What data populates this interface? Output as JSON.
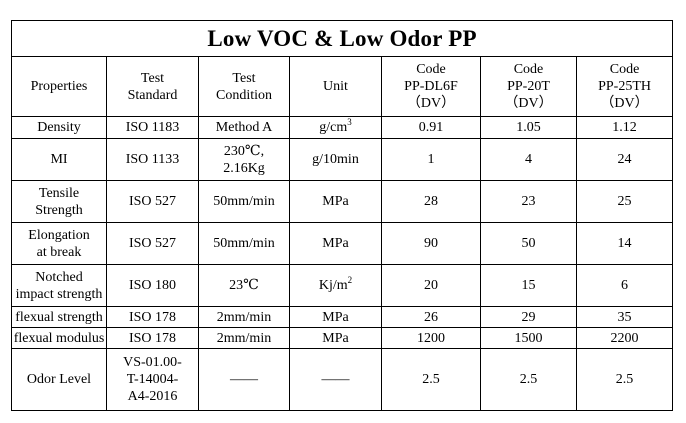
{
  "title": "Low VOC & Low Odor PP",
  "header": {
    "properties": "Properties",
    "test_standard": [
      "Test",
      "Standard"
    ],
    "test_condition": [
      "Test",
      "Condition"
    ],
    "unit": "Unit",
    "codes": [
      {
        "label": "Code",
        "name": "PP-DL6F",
        "suffix": "（DV）"
      },
      {
        "label": "Code",
        "name": "PP-20T",
        "suffix": "（DV）"
      },
      {
        "label": "Code",
        "name": "PP-25TH",
        "suffix": "（DV）"
      }
    ]
  },
  "rows": [
    {
      "property": [
        "Density"
      ],
      "standard": [
        "ISO 1183"
      ],
      "condition": [
        "Method A"
      ],
      "unit": "g/cm",
      "unit_sup": "3",
      "values": [
        "0.91",
        "1.05",
        "1.12"
      ]
    },
    {
      "property": [
        "MI"
      ],
      "standard": [
        "ISO 1133"
      ],
      "condition": [
        "230℃,",
        "2.16Kg"
      ],
      "unit": "g/10min",
      "unit_sup": "",
      "values": [
        "1",
        "4",
        "24"
      ]
    },
    {
      "property": [
        "Tensile",
        "Strength"
      ],
      "standard": [
        "ISO 527"
      ],
      "condition": [
        "50mm/min"
      ],
      "unit": "MPa",
      "unit_sup": "",
      "values": [
        "28",
        "23",
        "25"
      ]
    },
    {
      "property": [
        "Elongation",
        "at break"
      ],
      "standard": [
        "ISO 527"
      ],
      "condition": [
        "50mm/min"
      ],
      "unit": "MPa",
      "unit_sup": "",
      "values": [
        "90",
        "50",
        "14"
      ]
    },
    {
      "property": [
        "Notched",
        "impact strength"
      ],
      "standard": [
        "ISO 180"
      ],
      "condition": [
        "23℃"
      ],
      "unit": "Kj/m",
      "unit_sup": "2",
      "values": [
        "20",
        "15",
        "6"
      ]
    },
    {
      "property": [
        "flexual strength"
      ],
      "standard": [
        "ISO 178"
      ],
      "condition": [
        "2mm/min"
      ],
      "unit": "MPa",
      "unit_sup": "",
      "values": [
        "26",
        "29",
        "35"
      ]
    },
    {
      "property": [
        "flexual modulus"
      ],
      "standard": [
        "ISO 178"
      ],
      "condition": [
        "2mm/min"
      ],
      "unit": "MPa",
      "unit_sup": "",
      "values": [
        "1200",
        "1500",
        "2200"
      ]
    },
    {
      "property": [
        "Odor Level"
      ],
      "standard": [
        "VS-01.00-",
        "T-14004-",
        "A4-2016"
      ],
      "condition": [
        "——"
      ],
      "unit": "——",
      "unit_sup": "",
      "values": [
        "2.5",
        "2.5",
        "2.5"
      ]
    }
  ]
}
